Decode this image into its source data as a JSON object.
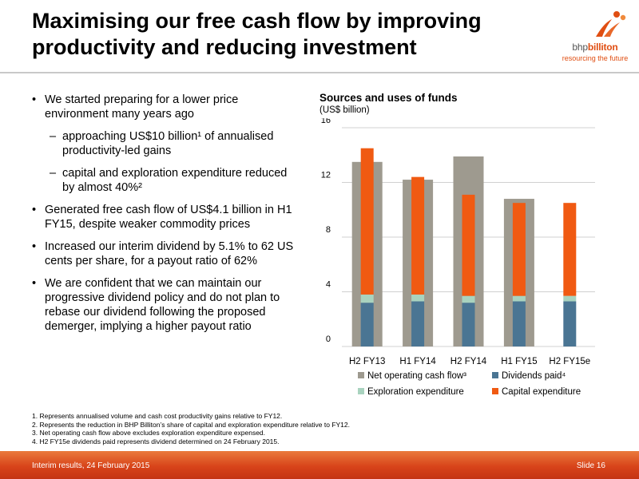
{
  "slide": {
    "title": "Maximising our free cash flow by improving productivity and reducing investment"
  },
  "logo": {
    "brand_part1": "bhp",
    "brand_part2": "billiton",
    "tagline": "resourcing the future",
    "color": "#e04e12"
  },
  "bullets": [
    {
      "level": 1,
      "text": "We started preparing for a lower price environment many years ago"
    },
    {
      "level": 2,
      "text": "approaching US$10 billion¹ of annualised productivity-led gains"
    },
    {
      "level": 2,
      "text": "capital and exploration expenditure reduced by almost 40%²"
    },
    {
      "level": 1,
      "text": "Generated free cash flow of US$4.1 billion in H1 FY15, despite weaker commodity prices"
    },
    {
      "level": 1,
      "text": "Increased our interim dividend by 5.1% to 62 US cents per share, for a payout ratio of 62%"
    },
    {
      "level": 1,
      "text": "We are confident that we can maintain our progressive dividend policy and do not plan to rebase our dividend following the proposed demerger, implying a higher payout ratio"
    }
  ],
  "chart_data": {
    "type": "bar",
    "title": "Sources and uses of funds",
    "subtitle": "(US$ billion)",
    "categories": [
      "H2 FY13",
      "H1 FY14",
      "H2 FY14",
      "H1 FY15",
      "H2 FY15e"
    ],
    "ylim": [
      0,
      16
    ],
    "yticks": [
      0,
      4,
      8,
      12,
      16
    ],
    "grid": true,
    "legend_position": "bottom",
    "sources": {
      "name": "Net operating cash flow³",
      "color": "#9e9a8f",
      "values": [
        13.5,
        12.2,
        13.9,
        10.8,
        null
      ]
    },
    "uses": [
      {
        "name": "Dividends paid⁴",
        "color": "#4a7593",
        "values": [
          3.2,
          3.3,
          3.2,
          3.3,
          3.3
        ]
      },
      {
        "name": "Exploration expenditure",
        "color": "#a9d3bf",
        "values": [
          0.6,
          0.5,
          0.5,
          0.4,
          0.4
        ]
      },
      {
        "name": "Capital expenditure",
        "color": "#f05a12",
        "values": [
          10.7,
          8.6,
          7.4,
          6.8,
          6.8
        ]
      }
    ],
    "legend": [
      "Net operating cash flow³",
      "Dividends paid⁴",
      "Exploration expenditure",
      "Capital expenditure"
    ]
  },
  "footnotes": [
    "1.  Represents annualised volume and cash cost productivity gains relative to FY12.",
    "2.  Represents the reduction in BHP Billiton’s share of capital and exploration expenditure relative to FY12.",
    "3.  Net operating cash flow above excludes exploration expenditure expensed.",
    "4.  H2 FY15e dividends paid represents dividend determined on 24 February 2015."
  ],
  "footer": {
    "left": "Interim results, 24 February 2015",
    "right": "Slide 16"
  }
}
